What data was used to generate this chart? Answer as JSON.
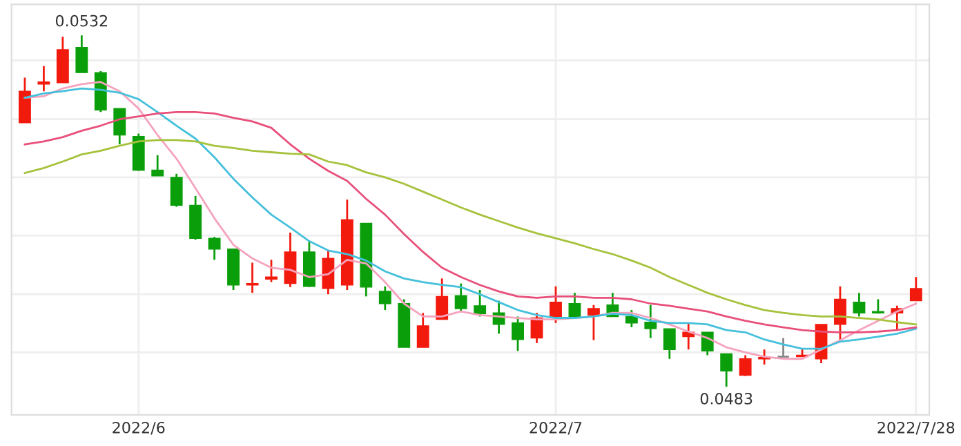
{
  "chart_data": {
    "type": "candlestick",
    "categories": [
      null,
      null,
      null,
      null,
      null,
      null,
      "2022/6",
      null,
      null,
      null,
      null,
      null,
      null,
      null,
      null,
      null,
      null,
      null,
      null,
      null,
      null,
      null,
      null,
      null,
      null,
      null,
      null,
      null,
      "2022/7",
      null,
      null,
      null,
      null,
      null,
      null,
      null,
      null,
      null,
      null,
      null,
      null,
      null,
      null,
      null,
      null,
      null,
      null,
      "2022/7/28"
    ],
    "ohlc": [
      [
        0.05198,
        0.05261,
        0.05198,
        0.05242
      ],
      [
        0.05252,
        0.05277,
        0.05242,
        0.05255
      ],
      [
        0.05254,
        0.05318,
        0.05254,
        0.053
      ],
      [
        0.05303,
        0.0532,
        0.05268,
        0.05268
      ],
      [
        0.05268,
        0.0527,
        0.05213,
        0.05216
      ],
      [
        0.05218,
        0.05218,
        0.05168,
        0.05181
      ],
      [
        0.05179,
        0.05183,
        0.05131,
        0.05132
      ],
      [
        0.05132,
        0.05153,
        0.05124,
        0.05124
      ],
      [
        0.05122,
        0.05127,
        0.05081,
        0.05083
      ],
      [
        0.05083,
        0.05096,
        0.05035,
        0.05037
      ],
      [
        0.05037,
        0.05039,
        0.05007,
        0.05022
      ],
      [
        0.05022,
        0.05022,
        0.04965,
        0.04972
      ],
      [
        0.04972,
        0.05003,
        0.04961,
        0.04974
      ],
      [
        0.0498,
        0.05007,
        0.04976,
        0.04983
      ],
      [
        0.04974,
        0.05045,
        0.04969,
        0.05018
      ],
      [
        0.05018,
        0.05032,
        0.04969,
        0.0497
      ],
      [
        0.04967,
        0.0502,
        0.04959,
        0.05009
      ],
      [
        0.04972,
        0.05091,
        0.04965,
        0.05063
      ],
      [
        0.05058,
        0.05058,
        0.04956,
        0.04969
      ],
      [
        0.04963,
        0.0497,
        0.04937,
        0.04946
      ],
      [
        0.04946,
        0.04952,
        0.04885,
        0.04885
      ],
      [
        0.04885,
        0.04933,
        0.04885,
        0.04915
      ],
      [
        0.04924,
        0.04981,
        0.04924,
        0.04956
      ],
      [
        0.04957,
        0.04974,
        0.04935,
        0.04939
      ],
      [
        0.04943,
        0.04965,
        0.04928,
        0.04932
      ],
      [
        0.04933,
        0.0495,
        0.04904,
        0.04917
      ],
      [
        0.04919,
        0.04928,
        0.0488,
        0.04896
      ],
      [
        0.04898,
        0.04933,
        0.04891,
        0.04926
      ],
      [
        0.04928,
        0.0497,
        0.04919,
        0.04948
      ],
      [
        0.04946,
        0.04961,
        0.04928,
        0.04928
      ],
      [
        0.0493,
        0.04944,
        0.04895,
        0.04939
      ],
      [
        0.04944,
        0.04961,
        0.04928,
        0.04928
      ],
      [
        0.04928,
        0.04937,
        0.04913,
        0.04919
      ],
      [
        0.0492,
        0.04944,
        0.04898,
        0.04911
      ],
      [
        0.04911,
        0.04911,
        0.04869,
        0.04882
      ],
      [
        0.049,
        0.04919,
        0.04882,
        0.04906
      ],
      [
        0.04906,
        0.04906,
        0.04874,
        0.0488
      ],
      [
        0.04876,
        0.04876,
        0.0483,
        0.04852
      ],
      [
        0.04846,
        0.04874,
        0.04845,
        0.04869
      ],
      [
        0.04869,
        0.04882,
        0.04861,
        0.04871
      ],
      [
        0.04872,
        0.04898,
        0.04872,
        0.04872
      ],
      [
        0.04872,
        0.04883,
        0.04872,
        0.04874
      ],
      [
        0.04869,
        0.04917,
        0.04863,
        0.04917
      ],
      [
        0.04917,
        0.0497,
        0.04895,
        0.04952
      ],
      [
        0.04948,
        0.04961,
        0.04928,
        0.04933
      ],
      [
        0.04935,
        0.04952,
        0.04932,
        0.04933
      ],
      [
        0.04933,
        0.04943,
        0.04909,
        0.04939
      ],
      [
        0.0495,
        0.04983,
        0.0495,
        0.04967
      ]
    ],
    "colors": [
      "#f21a0d",
      "#f21a0d",
      "#f21a0d",
      "#0a9f0a",
      "#0a9f0a",
      "#0a9f0a",
      "#0a9f0a",
      "#0a9f0a",
      "#0a9f0a",
      "#0a9f0a",
      "#0a9f0a",
      "#0a9f0a",
      "#f21a0d",
      "#f21a0d",
      "#f21a0d",
      "#0a9f0a",
      "#f21a0d",
      "#f21a0d",
      "#0a9f0a",
      "#0a9f0a",
      "#0a9f0a",
      "#f21a0d",
      "#f21a0d",
      "#0a9f0a",
      "#0a9f0a",
      "#0a9f0a",
      "#0a9f0a",
      "#f21a0d",
      "#f21a0d",
      "#0a9f0a",
      "#f21a0d",
      "#0a9f0a",
      "#0a9f0a",
      "#0a9f0a",
      "#0a9f0a",
      "#f21a0d",
      "#0a9f0a",
      "#0a9f0a",
      "#f21a0d",
      "#f21a0d",
      "#888888",
      "#f21a0d",
      "#f21a0d",
      "#f21a0d",
      "#0a9f0a",
      "#0a9f0a",
      "#f21a0d",
      "#f21a0d"
    ],
    "series": [
      {
        "type": "line",
        "color": "#f5a3bd",
        "values": [
          0.05233,
          0.05235,
          0.05246,
          0.05252,
          0.05255,
          0.05242,
          0.05218,
          0.05181,
          0.05148,
          0.05107,
          0.05065,
          0.05028,
          0.05009,
          0.04996,
          0.04993,
          0.04983,
          0.04987,
          0.05007,
          0.05002,
          0.04976,
          0.04946,
          0.04928,
          0.04928,
          0.04935,
          0.0493,
          0.04928,
          0.04926,
          0.04924,
          0.04924,
          0.04926,
          0.04928,
          0.04933,
          0.04933,
          0.04926,
          0.04917,
          0.04907,
          0.04898,
          0.04885,
          0.04878,
          0.04872,
          0.04869,
          0.04869,
          0.04882,
          0.04895,
          0.04909,
          0.04922,
          0.04935,
          0.04946
        ]
      },
      {
        "type": "line",
        "color": "#45c0dc",
        "values": [
          0.05233,
          0.05239,
          0.05242,
          0.05246,
          0.05244,
          0.0524,
          0.05231,
          0.05213,
          0.05194,
          0.05176,
          0.0515,
          0.0512,
          0.05094,
          0.0507,
          0.05052,
          0.05033,
          0.0502,
          0.05015,
          0.05006,
          0.04991,
          0.04981,
          0.04976,
          0.04972,
          0.04969,
          0.04959,
          0.04948,
          0.04937,
          0.0493,
          0.04926,
          0.04926,
          0.04928,
          0.04932,
          0.0493,
          0.04922,
          0.04919,
          0.04919,
          0.04917,
          0.04909,
          0.04906,
          0.04896,
          0.04889,
          0.04883,
          0.04883,
          0.04893,
          0.04896,
          0.049,
          0.04904,
          0.04911
        ]
      },
      {
        "type": "line",
        "color": "#e8507a",
        "values": [
          0.05168,
          0.05172,
          0.05178,
          0.05187,
          0.05194,
          0.05203,
          0.05207,
          0.05211,
          0.05213,
          0.05213,
          0.05211,
          0.05205,
          0.052,
          0.05191,
          0.05168,
          0.05148,
          0.05131,
          0.05117,
          0.05092,
          0.0507,
          0.05043,
          0.05018,
          0.04996,
          0.04983,
          0.04972,
          0.04963,
          0.04956,
          0.04954,
          0.04956,
          0.04956,
          0.04954,
          0.04954,
          0.04952,
          0.04946,
          0.04943,
          0.04939,
          0.04935,
          0.04928,
          0.04922,
          0.04917,
          0.04913,
          0.04909,
          0.04907,
          0.04906,
          0.04906,
          0.04907,
          0.04909,
          0.04913
        ]
      },
      {
        "type": "line",
        "color": "#a6c23c",
        "values": [
          0.05128,
          0.05135,
          0.05144,
          0.05154,
          0.05159,
          0.05166,
          0.05172,
          0.05174,
          0.05174,
          0.05172,
          0.05166,
          0.05163,
          0.05159,
          0.05157,
          0.05155,
          0.05154,
          0.05144,
          0.05139,
          0.05129,
          0.05122,
          0.05113,
          0.05102,
          0.05091,
          0.0508,
          0.0507,
          0.05061,
          0.05052,
          0.05044,
          0.05037,
          0.0503,
          0.05022,
          0.05015,
          0.05006,
          0.04996,
          0.04983,
          0.04972,
          0.04961,
          0.04952,
          0.04944,
          0.04937,
          0.04933,
          0.0493,
          0.04928,
          0.04928,
          0.04926,
          0.04924,
          0.0492,
          0.04917
        ]
      }
    ],
    "ylim": [
      0.04791,
      0.05363
    ],
    "yticks": [
      {
        "value": 0.04878,
        "label": null
      },
      {
        "value": 0.04959,
        "label": null
      },
      {
        "value": 0.05041,
        "label": null
      },
      {
        "value": 0.05122,
        "label": null
      },
      {
        "value": 0.05203,
        "label": null
      },
      {
        "value": 0.05285,
        "label": null
      }
    ],
    "tick_labels": "x",
    "grid": true,
    "annotations": [
      {
        "text": "0.0532",
        "y": 0.0532
      },
      {
        "text": "0.0483",
        "y": 0.0483
      }
    ]
  }
}
